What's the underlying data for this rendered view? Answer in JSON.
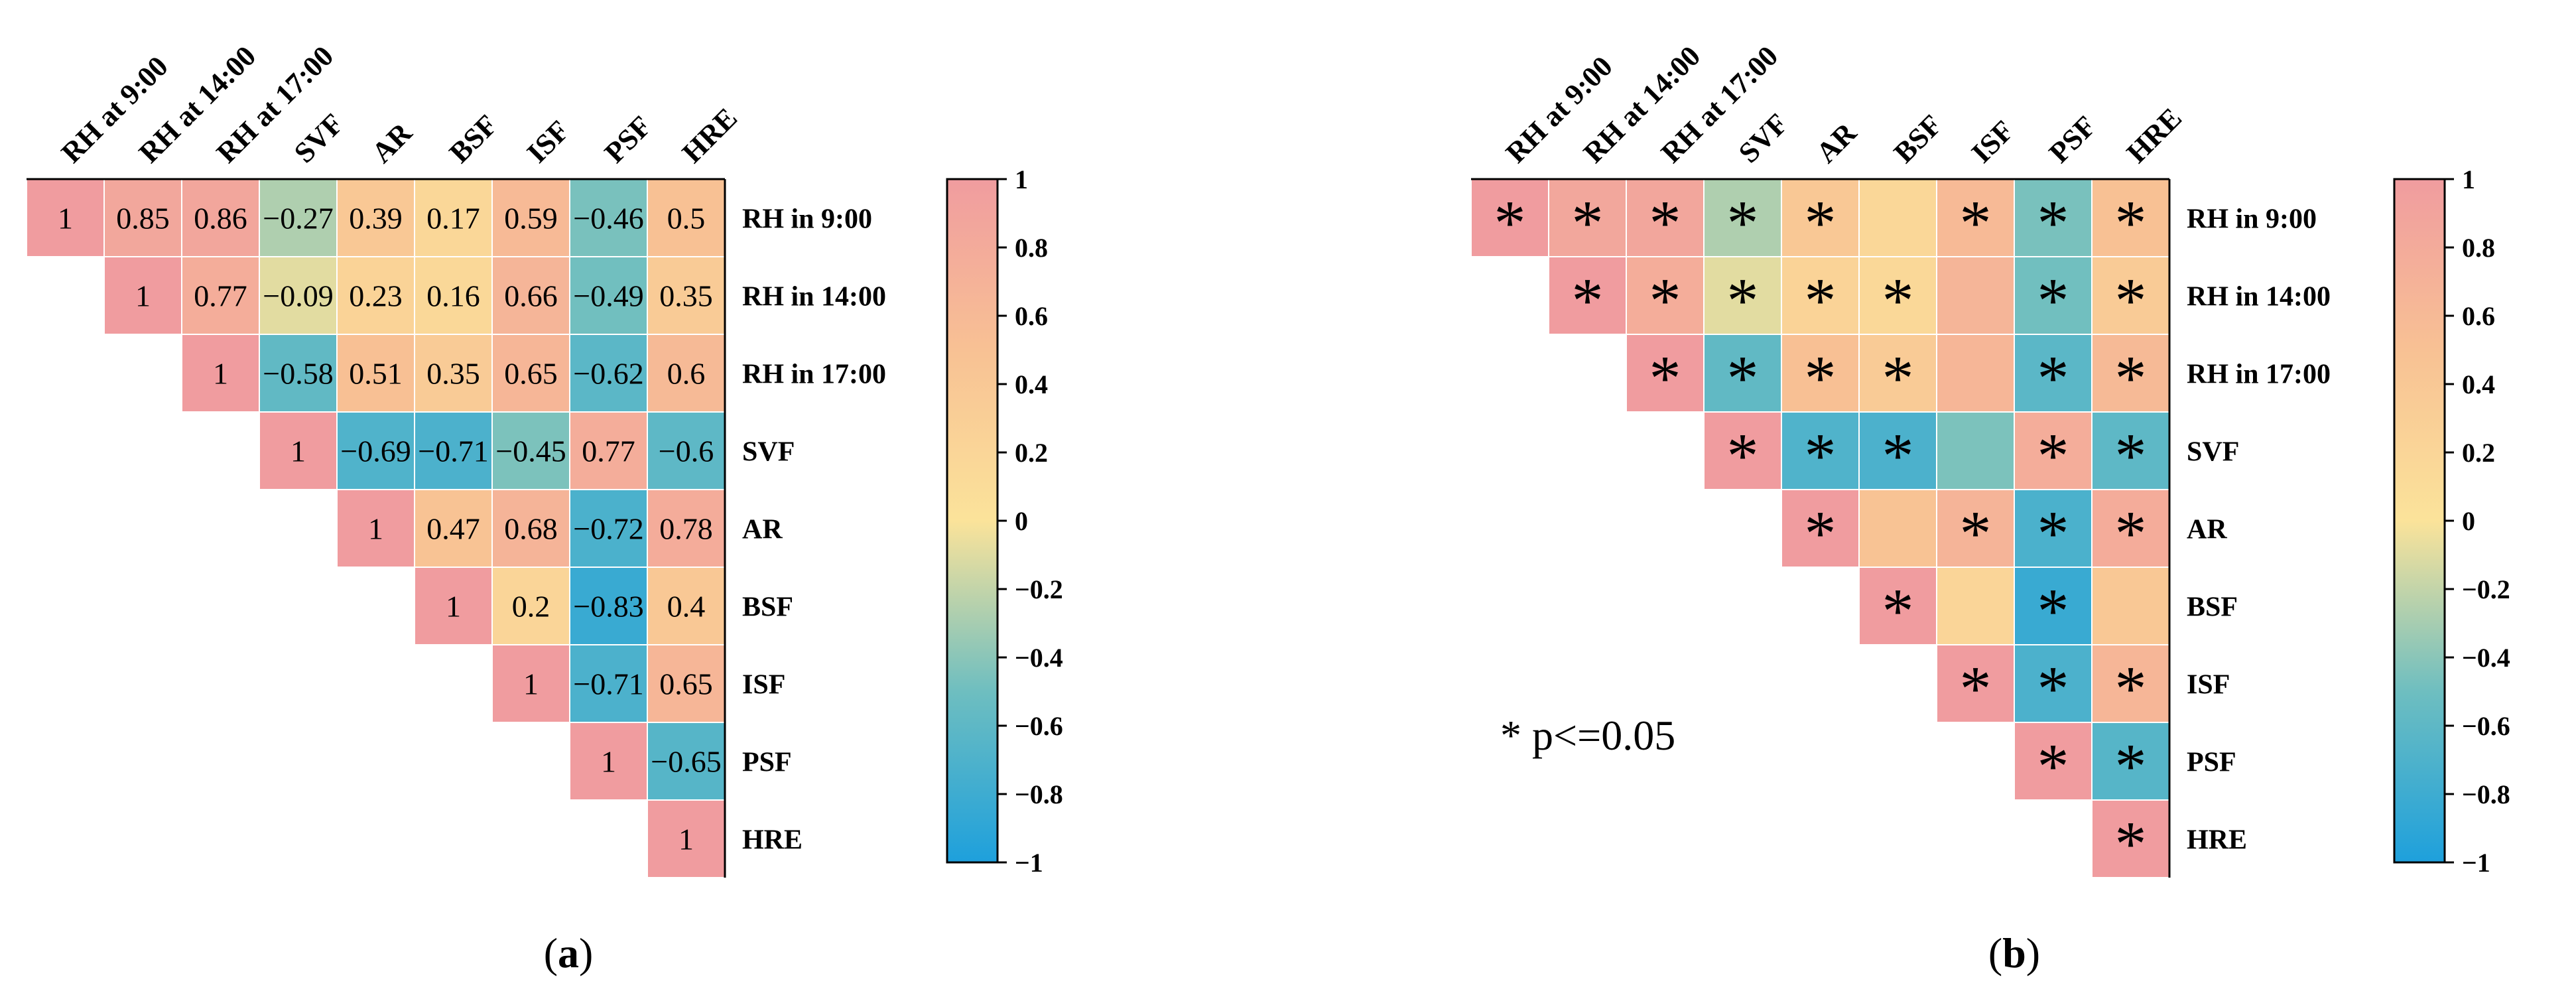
{
  "chart_data": [
    {
      "type": "heatmap",
      "panel_label": "(a)",
      "panel_letter": "a",
      "display": "values",
      "column_labels": [
        "RH at 9:00",
        "RH at 14:00",
        "RH at 17:00",
        "SVF",
        "AR",
        "BSF",
        "ISF",
        "PSF",
        "HRE"
      ],
      "row_labels": [
        "RH in 9:00",
        "RH in 14:00",
        "RH in 17:00",
        "SVF",
        "AR",
        "BSF",
        "ISF",
        "PSF",
        "HRE"
      ],
      "matrix": [
        [
          1,
          0.85,
          0.86,
          -0.27,
          0.39,
          0.17,
          0.59,
          -0.46,
          0.5
        ],
        [
          null,
          1,
          0.77,
          -0.09,
          0.23,
          0.16,
          0.66,
          -0.49,
          0.35
        ],
        [
          null,
          null,
          1,
          -0.58,
          0.51,
          0.35,
          0.65,
          -0.62,
          0.6
        ],
        [
          null,
          null,
          null,
          1,
          -0.69,
          -0.71,
          -0.45,
          0.77,
          -0.6
        ],
        [
          null,
          null,
          null,
          null,
          1,
          0.47,
          0.68,
          -0.72,
          0.78
        ],
        [
          null,
          null,
          null,
          null,
          null,
          1,
          0.2,
          -0.83,
          0.4
        ],
        [
          null,
          null,
          null,
          null,
          null,
          null,
          1,
          -0.71,
          0.65
        ],
        [
          null,
          null,
          null,
          null,
          null,
          null,
          null,
          1,
          -0.65
        ],
        [
          null,
          null,
          null,
          null,
          null,
          null,
          null,
          null,
          1
        ]
      ],
      "cell_labels": [
        [
          "1",
          "0.85",
          "0.86",
          "−0.27",
          "0.39",
          "0.17",
          "0.59",
          "−0.46",
          "0.5"
        ],
        [
          null,
          "1",
          "0.77",
          "−0.09",
          "0.23",
          "0.16",
          "0.66",
          "−0.49",
          "0.35"
        ],
        [
          null,
          null,
          "1",
          "−0.58",
          "0.51",
          "0.35",
          "0.65",
          "−0.62",
          "0.6"
        ],
        [
          null,
          null,
          null,
          "1",
          "−0.69",
          "−0.71",
          "−0.45",
          "0.77",
          "−0.6"
        ],
        [
          null,
          null,
          null,
          null,
          "1",
          "0.47",
          "0.68",
          "−0.72",
          "0.78"
        ],
        [
          null,
          null,
          null,
          null,
          null,
          "1",
          "0.2",
          "−0.83",
          "0.4"
        ],
        [
          null,
          null,
          null,
          null,
          null,
          null,
          "1",
          "−0.71",
          "0.65"
        ],
        [
          null,
          null,
          null,
          null,
          null,
          null,
          null,
          "1",
          "−0.65"
        ],
        [
          null,
          null,
          null,
          null,
          null,
          null,
          null,
          null,
          "1"
        ]
      ],
      "colorbar": {
        "range": [
          -1,
          1
        ],
        "ticks": [
          1,
          0.8,
          0.6,
          0.4,
          0.2,
          0,
          -0.2,
          -0.4,
          -0.6,
          -0.8,
          -1
        ],
        "tick_labels": [
          "1",
          "0.8",
          "0.6",
          "0.4",
          "0.2",
          "0",
          "−0.2",
          "−0.4",
          "−0.6",
          "−0.8",
          "−1"
        ]
      }
    },
    {
      "type": "heatmap",
      "panel_label": "(b)",
      "panel_letter": "b",
      "display": "significance",
      "column_labels": [
        "RH at 9:00",
        "RH at 14:00",
        "RH at 17:00",
        "SVF",
        "AR",
        "BSF",
        "ISF",
        "PSF",
        "HRE"
      ],
      "row_labels": [
        "RH in 9:00",
        "RH in 14:00",
        "RH in 17:00",
        "SVF",
        "AR",
        "BSF",
        "ISF",
        "PSF",
        "HRE"
      ],
      "matrix": [
        [
          1,
          0.85,
          0.86,
          -0.27,
          0.39,
          0.17,
          0.59,
          -0.46,
          0.5
        ],
        [
          null,
          1,
          0.77,
          -0.09,
          0.23,
          0.16,
          0.66,
          -0.49,
          0.35
        ],
        [
          null,
          null,
          1,
          -0.58,
          0.51,
          0.35,
          0.65,
          -0.62,
          0.6
        ],
        [
          null,
          null,
          null,
          1,
          -0.69,
          -0.71,
          -0.45,
          0.77,
          -0.6
        ],
        [
          null,
          null,
          null,
          null,
          1,
          0.47,
          0.68,
          -0.72,
          0.78
        ],
        [
          null,
          null,
          null,
          null,
          null,
          1,
          0.2,
          -0.83,
          0.4
        ],
        [
          null,
          null,
          null,
          null,
          null,
          null,
          1,
          -0.71,
          0.65
        ],
        [
          null,
          null,
          null,
          null,
          null,
          null,
          null,
          1,
          -0.65
        ],
        [
          null,
          null,
          null,
          null,
          null,
          null,
          null,
          null,
          1
        ]
      ],
      "significant": [
        [
          true,
          true,
          true,
          true,
          true,
          false,
          true,
          true,
          true
        ],
        [
          null,
          true,
          true,
          true,
          true,
          true,
          false,
          true,
          true
        ],
        [
          null,
          null,
          true,
          true,
          true,
          true,
          false,
          true,
          true
        ],
        [
          null,
          null,
          null,
          true,
          true,
          true,
          false,
          true,
          true
        ],
        [
          null,
          null,
          null,
          null,
          true,
          false,
          true,
          true,
          true
        ],
        [
          null,
          null,
          null,
          null,
          null,
          true,
          false,
          true,
          false
        ],
        [
          null,
          null,
          null,
          null,
          null,
          null,
          true,
          true,
          true
        ],
        [
          null,
          null,
          null,
          null,
          null,
          null,
          null,
          true,
          true
        ],
        [
          null,
          null,
          null,
          null,
          null,
          null,
          null,
          null,
          true
        ]
      ],
      "marker": "*",
      "annotation": "* p<=0.05",
      "colorbar": {
        "range": [
          -1,
          1
        ],
        "ticks": [
          1,
          0.8,
          0.6,
          0.4,
          0.2,
          0,
          -0.2,
          -0.4,
          -0.6,
          -0.8,
          -1
        ],
        "tick_labels": [
          "1",
          "0.8",
          "0.6",
          "0.4",
          "0.2",
          "0",
          "−0.2",
          "−0.4",
          "−0.6",
          "−0.8",
          "−1"
        ]
      }
    }
  ],
  "colors": {
    "negative_end": "#1ea0dc",
    "neg_mid": "#6ebec0",
    "zero": "#fbe39a",
    "pos_mid": "#f8c194",
    "positive_end": "#f09c9f",
    "cell_border": "#ffffff",
    "text": "#000000"
  }
}
